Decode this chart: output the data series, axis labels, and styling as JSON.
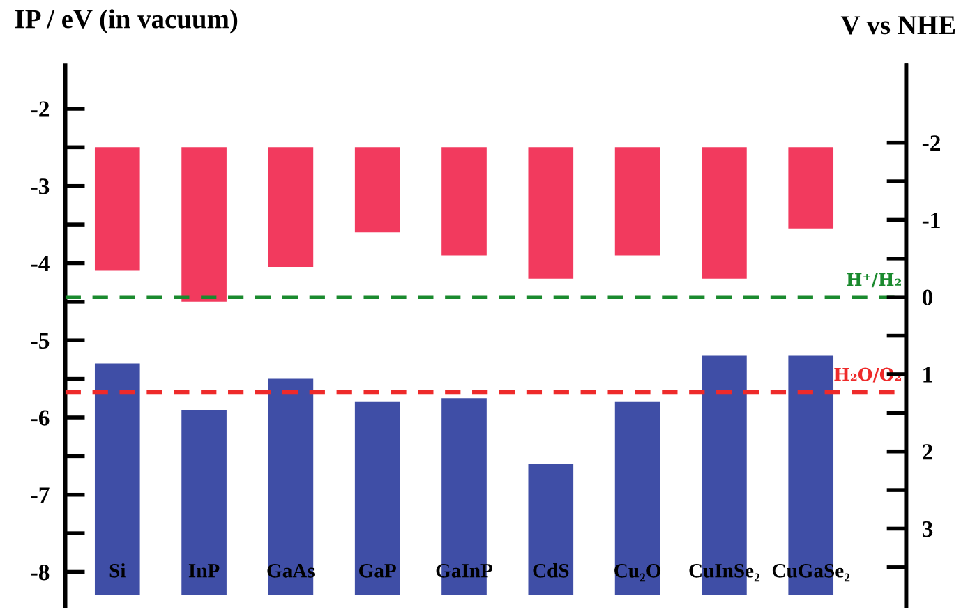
{
  "chart_data": {
    "type": "bar",
    "ylabel": "IP / eV (in vacuum)",
    "y2label": "V vs NHE",
    "categories": [
      "Si",
      "InP",
      "GaAs",
      "GaP",
      "GaInP",
      "CdS",
      "Cu₂O",
      "CuInSe₂",
      "CuGaSe₂"
    ],
    "series": [
      {
        "color": "#f23a5e",
        "base": [
          -2.5,
          -2.5,
          -2.5,
          -2.5,
          -2.5,
          -2.5,
          -2.5,
          -2.5,
          -2.5
        ],
        "values": [
          -1.6,
          -2.0,
          -1.55,
          -1.1,
          -1.4,
          -1.7,
          -1.4,
          -1.7,
          -1.05
        ]
      },
      {
        "color": "#3f4ea6",
        "base": [
          -8.3,
          -8.3,
          -8.3,
          -8.3,
          -8.3,
          -8.3,
          -8.3,
          -8.3,
          -8.3
        ],
        "values": [
          3.0,
          2.4,
          2.8,
          2.5,
          2.55,
          1.7,
          2.5,
          3.1,
          3.1
        ]
      }
    ],
    "ylim": [
      -8.44,
      -1.44
    ],
    "yticks": [
      -2,
      {
        "value": -2.5,
        "label": null
      },
      -3,
      {
        "value": -3.5,
        "label": null
      },
      -4,
      {
        "value": -4.5,
        "label": null
      },
      -5,
      {
        "value": -5.5,
        "label": null
      },
      -6,
      {
        "value": -6.5,
        "label": null
      },
      -7,
      {
        "value": -7.5,
        "label": null
      },
      -8
    ],
    "y2lim": [
      4.0,
      -3.0
    ],
    "y2ticks": [
      -2,
      {
        "value": -1.5,
        "label": null
      },
      -1,
      {
        "value": -0.5,
        "label": null
      },
      0,
      {
        "value": 0.5,
        "label": null
      },
      1,
      {
        "value": 1.5,
        "label": null
      },
      2,
      {
        "value": 2.5,
        "label": null
      },
      3,
      {
        "value": 3.5,
        "label": null
      }
    ],
    "ref_lines": [
      {
        "axis": "y",
        "value": -4.44,
        "label": "H⁺/H₂",
        "color": "#1a8a2e",
        "line_style": "dashed"
      },
      {
        "axis": "y",
        "value": -5.67,
        "label": "H₂O/O₂",
        "color": "#ee2a2a",
        "line_style": "dashed"
      }
    ],
    "grid": false,
    "legend": false
  }
}
